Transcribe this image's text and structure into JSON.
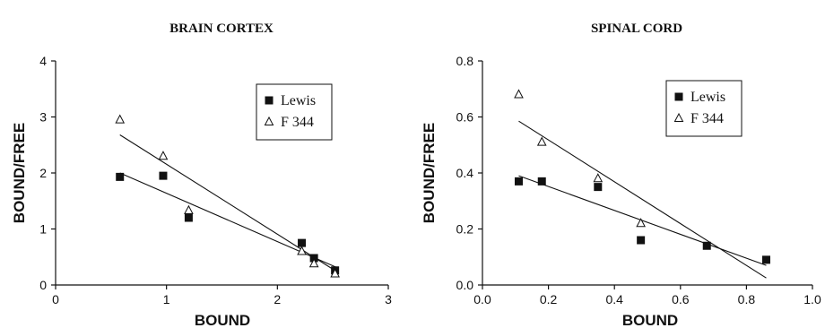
{
  "chart_data": [
    {
      "type": "scatter",
      "title": "BRAIN CORTEX",
      "xlabel": "BOUND",
      "ylabel": "BOUND/FREE",
      "xlim": [
        0,
        3
      ],
      "ylim": [
        0,
        4
      ],
      "xticks": [
        "0",
        "1",
        "2",
        "3"
      ],
      "yticks": [
        "0",
        "1",
        "2",
        "3",
        "4"
      ],
      "legend_position": "top-right",
      "series": [
        {
          "name": "Lewis",
          "marker": "square-filled",
          "x": [
            0.58,
            0.97,
            1.2,
            2.22,
            2.33,
            2.52
          ],
          "y": [
            1.93,
            1.95,
            1.2,
            0.75,
            0.48,
            0.26
          ],
          "fit": [
            [
              0.58,
              2.0
            ],
            [
              2.55,
              0.3
            ]
          ]
        },
        {
          "name": "F 344",
          "marker": "triangle-open",
          "x": [
            0.58,
            0.97,
            1.2,
            2.22,
            2.33,
            2.52
          ],
          "y": [
            2.95,
            2.3,
            1.33,
            0.6,
            0.38,
            0.2
          ],
          "fit": [
            [
              0.58,
              2.68
            ],
            [
              2.55,
              0.22
            ]
          ]
        }
      ]
    },
    {
      "type": "scatter",
      "title": "SPINAL CORD",
      "xlabel": "BOUND",
      "ylabel": "BOUND/FREE",
      "xlim": [
        0,
        1.0
      ],
      "ylim": [
        0,
        0.8
      ],
      "xticks": [
        "0.0",
        "0.2",
        "0.4",
        "0.6",
        "0.8",
        "1.0"
      ],
      "yticks": [
        "0.0",
        "0.2",
        "0.4",
        "0.6",
        "0.8"
      ],
      "legend_position": "top-right",
      "series": [
        {
          "name": "Lewis",
          "marker": "square-filled",
          "x": [
            0.11,
            0.18,
            0.35,
            0.48,
            0.68,
            0.86
          ],
          "y": [
            0.37,
            0.37,
            0.35,
            0.16,
            0.14,
            0.09
          ],
          "fit": [
            [
              0.11,
              0.39
            ],
            [
              0.86,
              0.07
            ]
          ]
        },
        {
          "name": "F 344",
          "marker": "triangle-open",
          "x": [
            0.11,
            0.18,
            0.35,
            0.48
          ],
          "y": [
            0.68,
            0.51,
            0.38,
            0.22
          ],
          "fit": [
            [
              0.11,
              0.585
            ],
            [
              0.86,
              0.025
            ]
          ]
        }
      ]
    }
  ]
}
